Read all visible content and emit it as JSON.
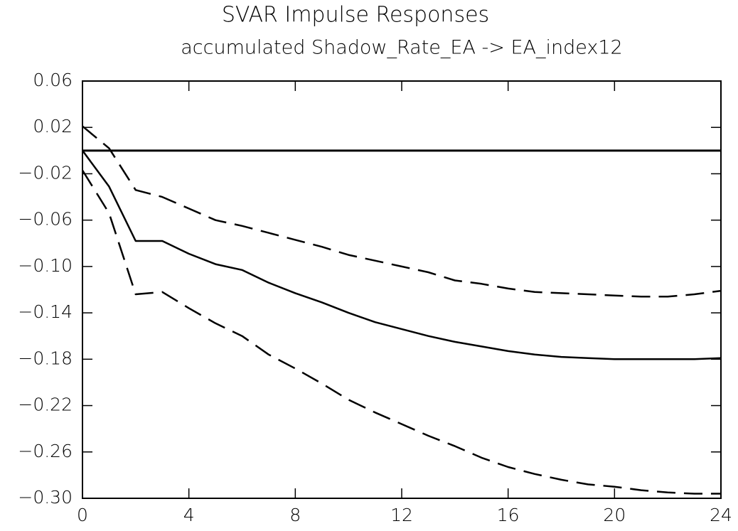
{
  "chart_data": {
    "type": "line",
    "title": "SVAR Impulse Responses",
    "subtitle": "accumulated Shadow_Rate_EA -> EA_index12",
    "x": [
      0,
      1,
      2,
      3,
      4,
      5,
      6,
      7,
      8,
      9,
      10,
      11,
      12,
      13,
      14,
      15,
      16,
      17,
      18,
      19,
      20,
      21,
      22,
      23,
      24
    ],
    "xlim": [
      0,
      24
    ],
    "xticks": [
      0,
      4,
      8,
      12,
      16,
      20,
      24
    ],
    "ylim": [
      -0.3,
      0.06
    ],
    "yticks": [
      0.06,
      0.02,
      {
        "value": -0.02,
        "label": "−0.02"
      },
      {
        "value": -0.06,
        "label": "−0.06"
      },
      {
        "value": -0.1,
        "label": "−0.10"
      },
      {
        "value": -0.14,
        "label": "−0.14"
      },
      {
        "value": -0.18,
        "label": "−0.18"
      },
      {
        "value": -0.22,
        "label": "−0.22"
      },
      {
        "value": -0.26,
        "label": "−0.26"
      },
      {
        "value": -0.3,
        "label": "−0.30"
      }
    ],
    "reference_line": 0,
    "series": [
      {
        "color": "#000000",
        "style": "solid",
        "values": [
          0,
          -0.031,
          -0.078,
          -0.078,
          -0.089,
          -0.098,
          -0.103,
          -0.114,
          -0.123,
          -0.131,
          -0.14,
          -0.148,
          -0.154,
          -0.16,
          -0.165,
          -0.169,
          -0.173,
          -0.176,
          -0.178,
          -0.179,
          -0.18,
          -0.18,
          -0.18,
          -0.18,
          -0.179
        ]
      },
      {
        "color": "#000000",
        "style": "dashed",
        "values": [
          0.021,
          0.002,
          -0.034,
          -0.04,
          -0.05,
          -0.06,
          -0.065,
          -0.071,
          -0.077,
          -0.083,
          -0.09,
          -0.095,
          -0.1,
          -0.105,
          -0.112,
          -0.115,
          -0.119,
          -0.122,
          -0.123,
          -0.124,
          -0.125,
          -0.126,
          -0.126,
          -0.124,
          -0.121
        ]
      },
      {
        "color": "#000000",
        "style": "dashed",
        "values": [
          -0.017,
          -0.054,
          -0.124,
          -0.122,
          -0.136,
          -0.149,
          -0.16,
          -0.176,
          -0.188,
          -0.201,
          -0.215,
          -0.226,
          -0.236,
          -0.246,
          -0.255,
          -0.265,
          -0.273,
          -0.279,
          -0.284,
          -0.288,
          -0.29,
          -0.293,
          -0.295,
          -0.296,
          -0.296
        ]
      }
    ]
  }
}
